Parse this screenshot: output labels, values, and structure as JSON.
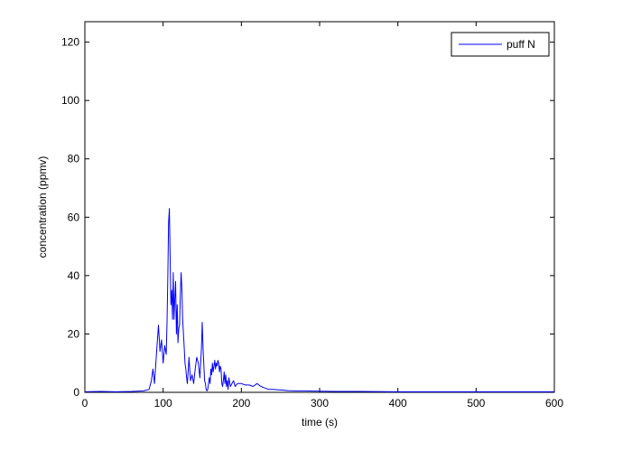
{
  "chart_data": {
    "type": "line",
    "title": "",
    "xlabel": "time (s)",
    "ylabel": "concentration (ppmv)",
    "xlim": [
      0,
      600
    ],
    "ylim": [
      0,
      127
    ],
    "xticks": [
      0,
      100,
      200,
      300,
      400,
      500,
      600
    ],
    "yticks": [
      0,
      20,
      40,
      60,
      80,
      100,
      120
    ],
    "grid": false,
    "legend_position": "top-right",
    "series": [
      {
        "name": "puff N",
        "color": "#0000ff",
        "x": [
          0,
          20,
          40,
          60,
          75,
          82,
          85,
          87,
          89,
          92,
          94,
          96,
          98,
          100,
          102,
          104,
          105,
          106,
          107,
          108,
          109,
          110,
          111,
          112,
          113,
          114,
          115,
          116,
          117,
          118,
          119,
          120,
          121,
          122,
          123,
          124,
          125,
          126,
          127,
          128,
          129,
          130,
          131,
          132,
          133,
          135,
          137,
          139,
          141,
          143,
          145,
          147,
          149,
          150,
          151,
          152,
          153,
          154,
          155,
          156,
          157,
          158,
          159,
          160,
          161,
          162,
          163,
          164,
          165,
          166,
          167,
          168,
          169,
          170,
          171,
          172,
          173,
          174,
          175,
          176,
          177,
          178,
          179,
          180,
          181,
          182,
          183,
          184,
          186,
          188,
          190,
          192,
          195,
          200,
          205,
          210,
          215,
          220,
          225,
          230,
          235,
          240,
          250,
          260,
          270,
          280,
          300,
          320,
          350,
          400,
          450,
          500,
          550,
          600
        ],
        "y": [
          0.2,
          0.3,
          0.2,
          0.3,
          0.5,
          1,
          4,
          8,
          3,
          15,
          23,
          14,
          18,
          10,
          16,
          13,
          24,
          40,
          58,
          63,
          45,
          30,
          35,
          25,
          41,
          25,
          33,
          38,
          20,
          30,
          17,
          22,
          23,
          33,
          41,
          35,
          25,
          20,
          15,
          10,
          8,
          5,
          3,
          7,
          12,
          4,
          6,
          3,
          8,
          12,
          10,
          5,
          15,
          24,
          15,
          10,
          4,
          3,
          1,
          0.5,
          1,
          3,
          5,
          3,
          8,
          6,
          10,
          7,
          9,
          11,
          8,
          10,
          9,
          11,
          10,
          7,
          9,
          8,
          3,
          2,
          4,
          7,
          3,
          6,
          2,
          4,
          1,
          5,
          2,
          3,
          4,
          2,
          3,
          3,
          2.5,
          2.5,
          2,
          3,
          2,
          1.5,
          1,
          1,
          0.8,
          0.6,
          0.5,
          0.5,
          0.4,
          0.3,
          0.3,
          0.2,
          0.2,
          0.2,
          0.2,
          0.2
        ]
      }
    ]
  }
}
